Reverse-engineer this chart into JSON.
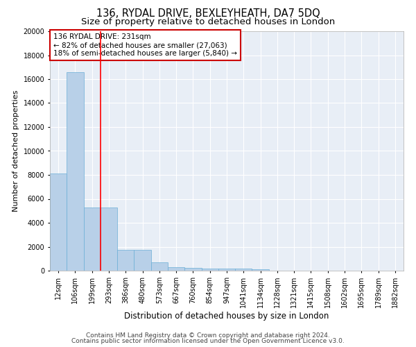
{
  "title": "136, RYDAL DRIVE, BEXLEYHEATH, DA7 5DQ",
  "subtitle": "Size of property relative to detached houses in London",
  "xlabel": "Distribution of detached houses by size in London",
  "ylabel": "Number of detached properties",
  "categories": [
    "12sqm",
    "106sqm",
    "199sqm",
    "293sqm",
    "386sqm",
    "480sqm",
    "573sqm",
    "667sqm",
    "760sqm",
    "854sqm",
    "947sqm",
    "1041sqm",
    "1134sqm",
    "1228sqm",
    "1321sqm",
    "1415sqm",
    "1508sqm",
    "1602sqm",
    "1695sqm",
    "1789sqm",
    "1882sqm"
  ],
  "values": [
    8100,
    16600,
    5300,
    5250,
    1750,
    1750,
    700,
    300,
    230,
    200,
    170,
    150,
    130,
    0,
    0,
    0,
    0,
    0,
    0,
    0,
    0
  ],
  "bar_color": "#b8d0e8",
  "bar_edge_color": "#6aaed6",
  "background_color": "#e8eef6",
  "red_line_x": 2.5,
  "annotation_text": "136 RYDAL DRIVE: 231sqm\n← 82% of detached houses are smaller (27,063)\n18% of semi-detached houses are larger (5,840) →",
  "annotation_box_facecolor": "#ffffff",
  "annotation_box_edgecolor": "#cc0000",
  "ylim": [
    0,
    20000
  ],
  "yticks": [
    0,
    2000,
    4000,
    6000,
    8000,
    10000,
    12000,
    14000,
    16000,
    18000,
    20000
  ],
  "footer1": "Contains HM Land Registry data © Crown copyright and database right 2024.",
  "footer2": "Contains public sector information licensed under the Open Government Licence v3.0.",
  "title_fontsize": 10.5,
  "subtitle_fontsize": 9.5,
  "xlabel_fontsize": 8.5,
  "ylabel_fontsize": 8,
  "tick_fontsize": 7,
  "annotation_fontsize": 7.5,
  "footer_fontsize": 6.5
}
